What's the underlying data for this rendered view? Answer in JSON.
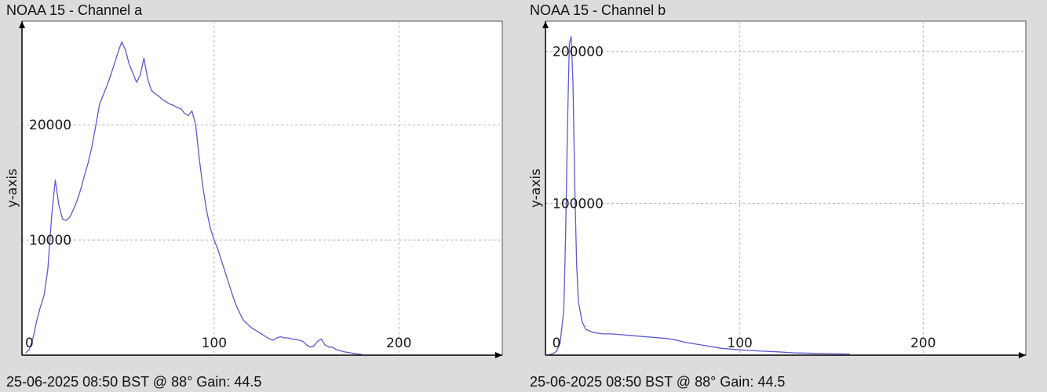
{
  "colors": {
    "plot_bg": "#ffffff",
    "grid": "#b5b5b5",
    "line": "#5a5ad2",
    "axis": "#000000",
    "window_bg": "#dcdcdc"
  },
  "chart_data": [
    {
      "type": "line",
      "title": "NOAA 15 - Channel a",
      "footer": "25-06-2025 08:50 BST @ 88° Gain: 44.5",
      "xlabel": "",
      "ylabel": "y-axis",
      "xlim": [
        -4,
        256
      ],
      "ylim": [
        0,
        29000
      ],
      "xticks": [
        0,
        100,
        200
      ],
      "xtick_labels": [
        "0",
        "100",
        "200"
      ],
      "yticks": [
        10000,
        20000
      ],
      "ytick_labels": [
        "10000",
        "20000"
      ],
      "grid": true,
      "x": [
        -2,
        0,
        2,
        4,
        6,
        8,
        10,
        12,
        14,
        16,
        18,
        20,
        22,
        24,
        26,
        28,
        30,
        32,
        34,
        36,
        38,
        40,
        42,
        44,
        46,
        48,
        50,
        52,
        54,
        56,
        58,
        60,
        62,
        64,
        66,
        68,
        70,
        72,
        74,
        76,
        78,
        80,
        82,
        84,
        86,
        88,
        90,
        92,
        94,
        96,
        98,
        100,
        102,
        104,
        106,
        108,
        110,
        112,
        114,
        116,
        118,
        120,
        122,
        124,
        126,
        128,
        130,
        132,
        134,
        136,
        138,
        140,
        142,
        144,
        146,
        148,
        150,
        152,
        154,
        156,
        158,
        160,
        162,
        164,
        166,
        168,
        170,
        172,
        174,
        176,
        178,
        180
      ],
      "series": [
        {
          "values": [
            200,
            500,
            1500,
            3000,
            4200,
            5200,
            7500,
            12000,
            15200,
            13000,
            11800,
            11700,
            12000,
            12700,
            13500,
            14500,
            15700,
            16800,
            18200,
            20000,
            21800,
            22600,
            23400,
            24300,
            25300,
            26300,
            27200,
            26500,
            25300,
            24500,
            23700,
            24300,
            25800,
            24000,
            23000,
            22700,
            22500,
            22200,
            22000,
            21800,
            21700,
            21500,
            21400,
            21000,
            20800,
            21200,
            20000,
            17000,
            14500,
            12500,
            11000,
            10000,
            9200,
            8200,
            7200,
            6200,
            5200,
            4300,
            3600,
            3000,
            2700,
            2400,
            2200,
            2000,
            1800,
            1600,
            1400,
            1300,
            1500,
            1600,
            1500,
            1500,
            1400,
            1350,
            1300,
            1200,
            900,
            700,
            800,
            1200,
            1400,
            900,
            700,
            700,
            500,
            400,
            300,
            250,
            200,
            150,
            100,
            50
          ]
        }
      ]
    },
    {
      "type": "line",
      "title": "NOAA 15 - Channel b",
      "footer": "25-06-2025 08:50 BST @ 88° Gain: 44.5",
      "xlabel": "",
      "ylabel": "y-axis",
      "xlim": [
        -6,
        256
      ],
      "ylim": [
        0,
        220000
      ],
      "xticks": [
        0,
        100,
        200
      ],
      "xtick_labels": [
        "0",
        "100",
        "200"
      ],
      "yticks": [
        100000,
        200000
      ],
      "ytick_labels": [
        "100000",
        "200000"
      ],
      "grid": true,
      "x": [
        -4,
        -2,
        0,
        2,
        4,
        5,
        6,
        7,
        8,
        9,
        10,
        11,
        12,
        14,
        16,
        20,
        25,
        30,
        40,
        50,
        60,
        65,
        70,
        80,
        90,
        100,
        110,
        120,
        130,
        140,
        150,
        160
      ],
      "series": [
        {
          "values": [
            300,
            1000,
            2500,
            8000,
            30000,
            80000,
            150000,
            205000,
            210000,
            180000,
            110000,
            60000,
            35000,
            22000,
            17000,
            15000,
            14000,
            14000,
            13000,
            12000,
            11000,
            10000,
            8500,
            6500,
            4500,
            3500,
            2800,
            2200,
            1500,
            1200,
            1000,
            700
          ]
        }
      ]
    }
  ]
}
